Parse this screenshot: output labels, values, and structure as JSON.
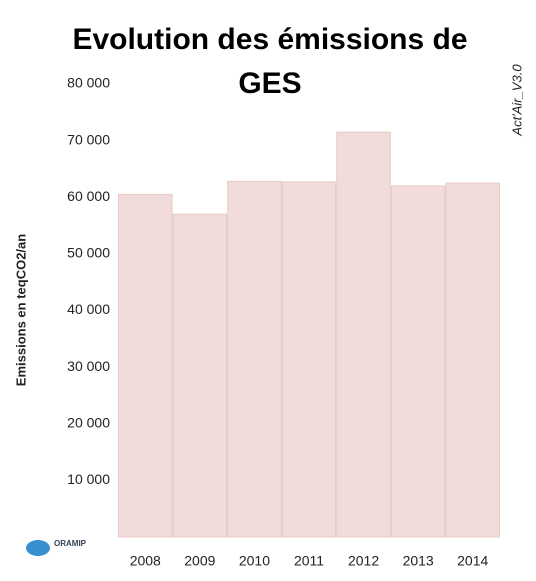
{
  "chart_data": {
    "type": "bar",
    "title": "Evolution des émissions de GES",
    "y_label": "Emissions en teqCO2/an",
    "watermark": "Act'Air_V3.0",
    "logo": "ORAMIP",
    "categories": [
      "2008",
      "2009",
      "2010",
      "2011",
      "2012",
      "2013",
      "2014"
    ],
    "values": [
      60500,
      57000,
      62800,
      62700,
      71500,
      62000,
      62500
    ],
    "color": "#f2dcdb",
    "ylim": [
      0,
      80000
    ],
    "yticks": [
      {
        "value": 10000,
        "label": "10 000"
      },
      {
        "value": 20000,
        "label": "20 000"
      },
      {
        "value": 30000,
        "label": "30 000"
      },
      {
        "value": 40000,
        "label": "40 000"
      },
      {
        "value": 50000,
        "label": "50 000"
      },
      {
        "value": 60000,
        "label": "60 000"
      },
      {
        "value": 70000,
        "label": "70 000"
      },
      {
        "value": 80000,
        "label": "80 000"
      }
    ],
    "grid": false
  }
}
